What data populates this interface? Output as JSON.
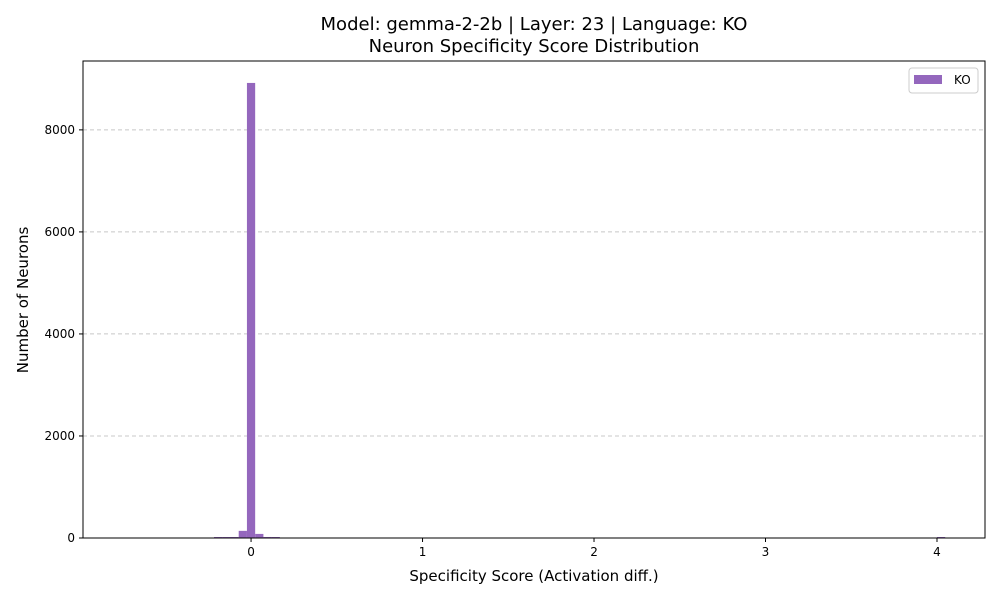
{
  "chart_data": {
    "type": "bar",
    "title": "Model: gemma-2-2b | Layer: 23 | Language: KO",
    "subtitle": "Neuron Specificity Score Distribution",
    "xlabel": "Specificity Score (Activation diff.)",
    "ylabel": "Number of Neurons",
    "xlim": [
      -0.98,
      4.28
    ],
    "ylim": [
      0,
      9350
    ],
    "x_ticks": [
      0,
      1,
      2,
      3,
      4
    ],
    "y_ticks": [
      0,
      2000,
      4000,
      6000,
      8000
    ],
    "grid": "y-dashed",
    "legend": {
      "position": "top-right",
      "entries": [
        "KO"
      ]
    },
    "bin_width": 0.048,
    "series": [
      {
        "name": "KO",
        "color": "#9467bd",
        "bins": [
          {
            "x": -0.216,
            "count": 3
          },
          {
            "x": -0.168,
            "count": 8
          },
          {
            "x": -0.12,
            "count": 15
          },
          {
            "x": -0.072,
            "count": 140
          },
          {
            "x": -0.024,
            "count": 8920
          },
          {
            "x": 0.024,
            "count": 80
          },
          {
            "x": 0.072,
            "count": 20
          },
          {
            "x": 0.12,
            "count": 6
          },
          {
            "x": 4.0,
            "count": 1
          }
        ]
      }
    ]
  }
}
